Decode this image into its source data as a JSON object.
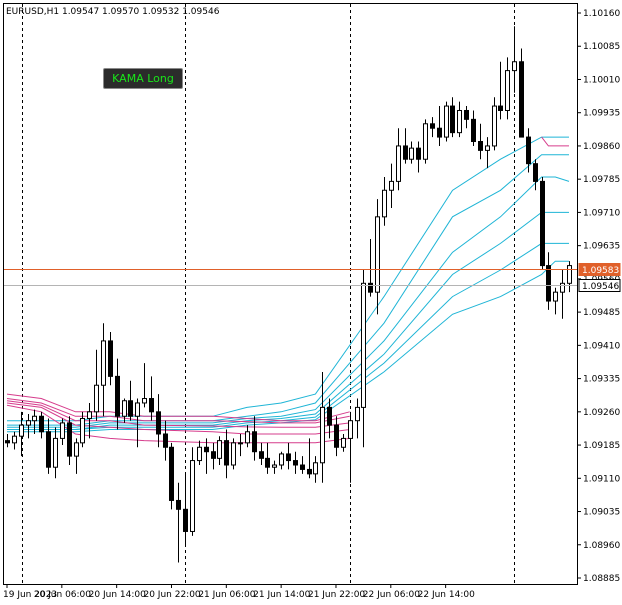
{
  "header": {
    "symbol_text": "EURUSD,H1  1.09547 1.09570 1.09532 1.09546"
  },
  "indicator_button": {
    "label": "KAMA Long"
  },
  "colors": {
    "bull_body": "#ffffff",
    "bear_body": "#000000",
    "wick": "#000000",
    "upper_bands": "#1fb5d6",
    "lower_bands": "#d63c8c",
    "price_line": "#e0602a",
    "bid_line": "#b4b4b4",
    "separator": "#000000"
  },
  "chart_data": {
    "type": "candlestick",
    "title": "EURUSD,H1",
    "ohlc_readout": {
      "open": 1.09547,
      "high": 1.0957,
      "low": 1.09532,
      "close": 1.09546
    },
    "ylim": [
      1.0885,
      1.102
    ],
    "y_ticks": [
      "1.10160",
      "1.10085",
      "1.10010",
      "1.09935",
      "1.09860",
      "1.09785",
      "1.09710",
      "1.09635",
      "1.09560",
      "1.09485",
      "1.09410",
      "1.09335",
      "1.09260",
      "1.09185",
      "1.09110",
      "1.09035",
      "1.08960",
      "1.08885"
    ],
    "x_ticks": [
      "19 Jun 2023",
      "20 Jun 06:00",
      "20 Jun 14:00",
      "20 Jun 22:00",
      "21 Jun 06:00",
      "21 Jun 14:00",
      "21 Jun 22:00",
      "22 Jun 06:00",
      "22 Jun 14:00"
    ],
    "price_labels": [
      {
        "value": 1.09583,
        "text": "1.09583",
        "kind": "current"
      },
      {
        "value": 1.09546,
        "text": "1.09546",
        "kind": "bid"
      }
    ],
    "day_separators": [
      "20 Jun 00:00",
      "21 Jun 00:00",
      "22 Jun 00:00"
    ],
    "candles": [
      [
        1.09195,
        1.0921,
        1.0918,
        1.0919
      ],
      [
        1.0919,
        1.09215,
        1.09175,
        1.09205
      ],
      [
        1.09205,
        1.0926,
        1.0916,
        1.0923
      ],
      [
        1.0923,
        1.09255,
        1.092,
        1.0924
      ],
      [
        1.0924,
        1.09265,
        1.0921,
        1.0925
      ],
      [
        1.0925,
        1.0926,
        1.092,
        1.09215
      ],
      [
        1.09215,
        1.09245,
        1.0912,
        1.09135
      ],
      [
        1.09135,
        1.09225,
        1.0911,
        1.092
      ],
      [
        1.092,
        1.09245,
        1.09185,
        1.09235
      ],
      [
        1.09235,
        1.0925,
        1.0914,
        1.0916
      ],
      [
        1.0916,
        1.092,
        1.0912,
        1.0919
      ],
      [
        1.0919,
        1.0926,
        1.0918,
        1.09245
      ],
      [
        1.09245,
        1.0928,
        1.092,
        1.0926
      ],
      [
        1.0926,
        1.094,
        1.0924,
        1.0932
      ],
      [
        1.0932,
        1.0946,
        1.0925,
        1.0942
      ],
      [
        1.0942,
        1.0944,
        1.0932,
        1.0934
      ],
      [
        1.0934,
        1.0938,
        1.0922,
        1.0925
      ],
      [
        1.0925,
        1.0929,
        1.09235,
        1.09285
      ],
      [
        1.09285,
        1.0933,
        1.0924,
        1.0925
      ],
      [
        1.0925,
        1.0929,
        1.0918,
        1.0928
      ],
      [
        1.0928,
        1.0937,
        1.0927,
        1.0929
      ],
      [
        1.0929,
        1.0934,
        1.0924,
        1.0926
      ],
      [
        1.0926,
        1.093,
        1.0918,
        1.0921
      ],
      [
        1.0921,
        1.0924,
        1.0915,
        1.0918
      ],
      [
        1.0918,
        1.0919,
        1.0904,
        1.0906
      ],
      [
        1.0906,
        1.091,
        1.0892,
        1.0904
      ],
      [
        1.0904,
        1.0912,
        1.0896,
        1.0899
      ],
      [
        1.0899,
        1.0918,
        1.0898,
        1.0915
      ],
      [
        1.0915,
        1.09195,
        1.0914,
        1.0918
      ],
      [
        1.0918,
        1.092,
        1.0912,
        1.0917
      ],
      [
        1.0917,
        1.0919,
        1.0913,
        1.09155
      ],
      [
        1.09155,
        1.09205,
        1.0914,
        1.09195
      ],
      [
        1.09195,
        1.0922,
        1.0911,
        1.0914
      ],
      [
        1.0914,
        1.092,
        1.0913,
        1.0919
      ],
      [
        1.0919,
        1.0921,
        1.0916,
        1.0919
      ],
      [
        1.0919,
        1.0923,
        1.0918,
        1.09215
      ],
      [
        1.09215,
        1.0925,
        1.0915,
        1.0917
      ],
      [
        1.0917,
        1.0919,
        1.0914,
        1.09155
      ],
      [
        1.09155,
        1.0919,
        1.0912,
        1.09135
      ],
      [
        1.09135,
        1.0915,
        1.0912,
        1.0914
      ],
      [
        1.0914,
        1.0917,
        1.0913,
        1.09165
      ],
      [
        1.09165,
        1.0919,
        1.0913,
        1.0915
      ],
      [
        1.0915,
        1.0917,
        1.0912,
        1.0914
      ],
      [
        1.0914,
        1.0916,
        1.0912,
        1.0913
      ],
      [
        1.0913,
        1.092,
        1.0911,
        1.0912
      ],
      [
        1.0912,
        1.0916,
        1.091,
        1.09145
      ],
      [
        1.09145,
        1.0935,
        1.091,
        1.0927
      ],
      [
        1.0927,
        1.0929,
        1.092,
        1.0923
      ],
      [
        1.0923,
        1.0925,
        1.0916,
        1.0918
      ],
      [
        1.0918,
        1.0921,
        1.0917,
        1.092
      ],
      [
        1.092,
        1.0926,
        1.091,
        1.0924
      ],
      [
        1.0924,
        1.0929,
        1.092,
        1.0927
      ],
      [
        1.0927,
        1.0958,
        1.0918,
        1.0955
      ],
      [
        1.0955,
        1.0965,
        1.0952,
        1.0953
      ],
      [
        1.0953,
        1.0974,
        1.0948,
        1.097
      ],
      [
        1.097,
        1.0979,
        1.0968,
        1.0976
      ],
      [
        1.0976,
        1.0982,
        1.0972,
        1.0978
      ],
      [
        1.0978,
        1.099,
        1.0976,
        1.0986
      ],
      [
        1.0986,
        1.099,
        1.0982,
        1.0983
      ],
      [
        1.0983,
        1.0987,
        1.0982,
        1.09855
      ],
      [
        1.09855,
        1.0987,
        1.098,
        1.0983
      ],
      [
        1.0983,
        1.0992,
        1.0982,
        1.0991
      ],
      [
        1.0991,
        1.09925,
        1.0988,
        1.099
      ],
      [
        1.099,
        1.0995,
        1.0986,
        1.0988
      ],
      [
        1.0988,
        1.0996,
        1.0987,
        1.0995
      ],
      [
        1.0995,
        1.0997,
        1.0988,
        1.0989
      ],
      [
        1.0989,
        1.0996,
        1.0988,
        1.0994
      ],
      [
        1.0994,
        1.0995,
        1.099,
        1.0992
      ],
      [
        1.0992,
        1.0994,
        1.0986,
        1.0987
      ],
      [
        1.0987,
        1.0991,
        1.0983,
        1.0985
      ],
      [
        1.0985,
        1.0988,
        1.0981,
        1.0986
      ],
      [
        1.0986,
        1.0997,
        1.0985,
        1.0995
      ],
      [
        1.0995,
        1.1005,
        1.0992,
        1.0994
      ],
      [
        1.0994,
        1.1006,
        1.0992,
        1.1003
      ],
      [
        1.1003,
        1.1013,
        1.0998,
        1.1005
      ],
      [
        1.1005,
        1.1008,
        1.0988,
        1.0988
      ],
      [
        1.0988,
        1.099,
        1.098,
        1.0982
      ],
      [
        1.0982,
        1.0983,
        1.0976,
        1.0978
      ],
      [
        1.0978,
        1.0979,
        1.0958,
        1.0959
      ],
      [
        1.0959,
        1.0962,
        1.0949,
        1.0951
      ],
      [
        1.0951,
        1.0954,
        1.0948,
        1.0953
      ],
      [
        1.0953,
        1.0958,
        1.0947,
        1.0955
      ],
      [
        1.0955,
        1.096,
        1.0953,
        1.0959
      ]
    ],
    "upper_bands": [
      [
        1.0924,
        1.0924,
        1.0925,
        1.0925,
        1.0925,
        1.0925,
        1.0927,
        1.0928,
        1.093,
        1.0952,
        1.0976,
        1.0983,
        1.0988,
        1.0988,
        1.0988
      ],
      [
        1.0923,
        1.0923,
        1.0924,
        1.0924,
        1.0924,
        1.0924,
        1.0925,
        1.0926,
        1.0928,
        1.0946,
        1.097,
        1.0976,
        1.0984,
        1.0984,
        1.0984
      ],
      [
        1.09225,
        1.09225,
        1.09235,
        1.09235,
        1.09235,
        1.09235,
        1.09245,
        1.0925,
        1.09265,
        1.0942,
        1.0962,
        1.097,
        1.0979,
        1.0979,
        1.0978
      ],
      [
        1.0922,
        1.0922,
        1.0923,
        1.0923,
        1.0923,
        1.0923,
        1.0924,
        1.09245,
        1.09255,
        1.0939,
        1.0957,
        1.0964,
        1.0971,
        1.0971,
        1.0971
      ],
      [
        1.0922,
        1.0922,
        1.09225,
        1.09225,
        1.09225,
        1.09225,
        1.09235,
        1.0924,
        1.09248,
        1.0937,
        1.0952,
        1.0958,
        1.0964,
        1.0964,
        1.0964
      ],
      [
        1.09215,
        1.09215,
        1.0922,
        1.0922,
        1.0922,
        1.0922,
        1.0923,
        1.09235,
        1.09242,
        1.0935,
        1.0948,
        1.0952,
        1.0957,
        1.096,
        1.096
      ]
    ],
    "upper_band_x": [
      0,
      10,
      15,
      20,
      25,
      30,
      35,
      40,
      45,
      55,
      65,
      72,
      78,
      80,
      82
    ],
    "lower_bands": [
      [
        1.093,
        1.0929,
        1.0926,
        1.0926,
        1.0925,
        1.0925,
        1.09245,
        1.0924,
        1.0924,
        1.0926
      ],
      [
        1.0929,
        1.0928,
        1.0925,
        1.0925,
        1.0924,
        1.0924,
        1.09238,
        1.09235,
        1.09235,
        1.0925
      ],
      [
        1.09285,
        1.09275,
        1.0924,
        1.0924,
        1.0923,
        1.09228,
        1.09226,
        1.09225,
        1.09225,
        1.09235
      ],
      [
        1.0928,
        1.0927,
        1.0923,
        1.09225,
        1.0922,
        1.09215,
        1.0921,
        1.0921,
        1.0921,
        1.0922
      ],
      [
        1.09275,
        1.0926,
        1.0921,
        1.092,
        1.09195,
        1.0919,
        1.0919,
        1.0919,
        1.0919,
        1.092
      ]
    ],
    "lower_band_x": [
      0,
      5,
      10,
      15,
      20,
      30,
      35,
      40,
      45,
      50
    ],
    "lower_band_tail": {
      "values": [
        1.0988,
        1.0986,
        1.0986
      ],
      "x": [
        78,
        79,
        82
      ]
    }
  }
}
